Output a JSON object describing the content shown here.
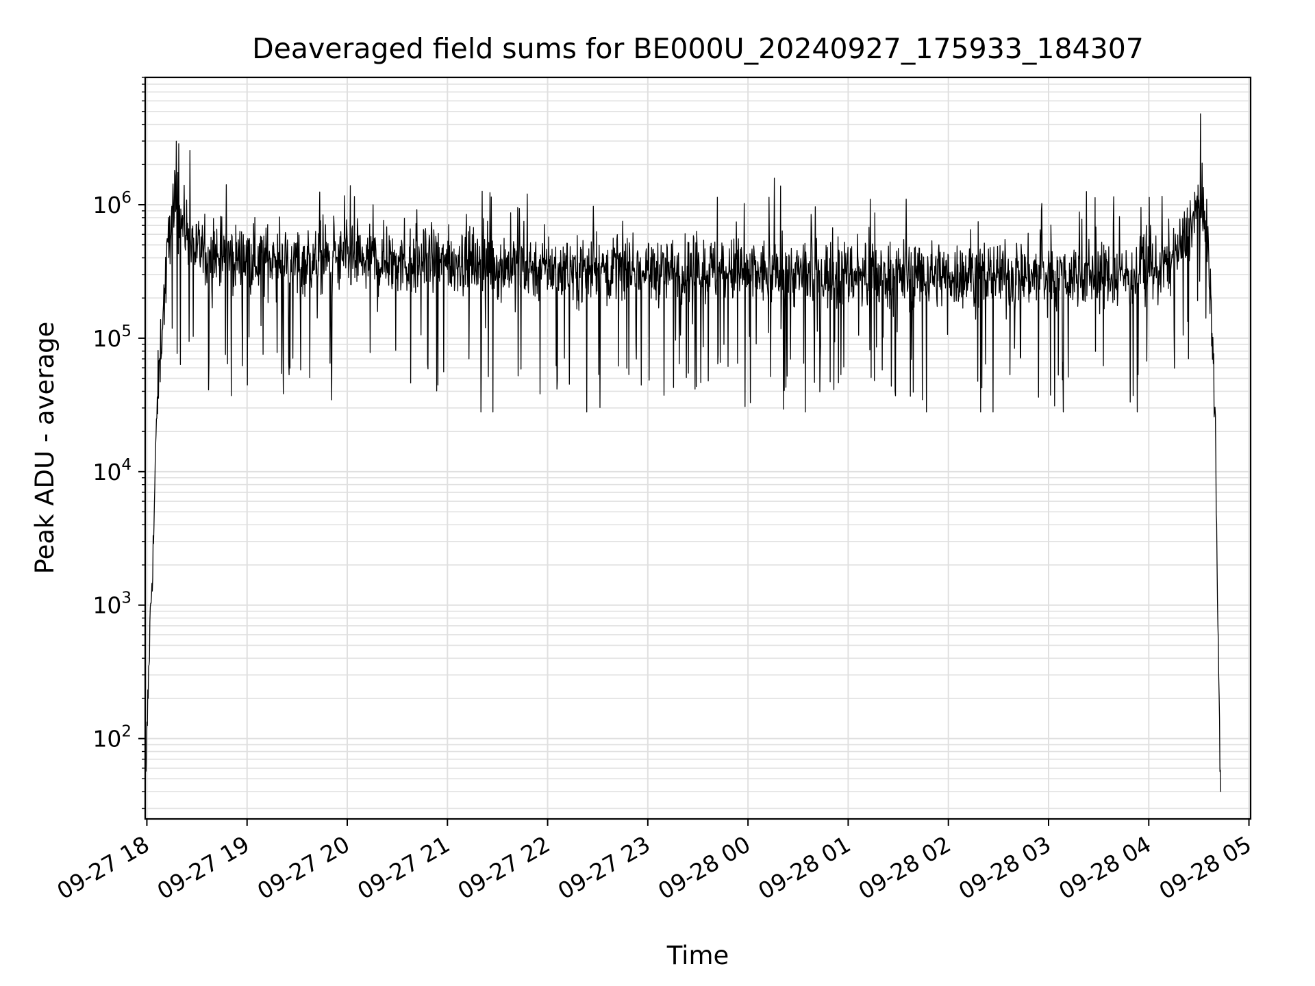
{
  "chart_data": {
    "type": "line",
    "title": "Deaveraged field sums for BE000U_20240927_175933_184307",
    "xlabel": "Time",
    "ylabel": "Peak ADU - average",
    "yscale": "log",
    "ylim": [
      25,
      9000000
    ],
    "xlim": [
      "2024-09-27 17:59",
      "2024-09-28 05:01"
    ],
    "grid": true,
    "line_color": "#000000",
    "grid_color": "#e0e0e0",
    "x_tick_labels": [
      "09-27 18",
      "09-27 19",
      "09-27 20",
      "09-27 21",
      "09-27 22",
      "09-27 23",
      "09-28 00",
      "09-28 01",
      "09-28 02",
      "09-28 03",
      "09-28 04",
      "09-28 05"
    ],
    "x_ticks": [
      "2024-09-27 18:00",
      "2024-09-27 19:00",
      "2024-09-27 20:00",
      "2024-09-27 21:00",
      "2024-09-27 22:00",
      "2024-09-27 23:00",
      "2024-09-28 00:00",
      "2024-09-28 01:00",
      "2024-09-28 02:00",
      "2024-09-28 03:00",
      "2024-09-28 04:00",
      "2024-09-28 05:00"
    ],
    "y_ticks": [
      {
        "value": 100,
        "base": "10",
        "exp": "2"
      },
      {
        "value": 1000,
        "base": "10",
        "exp": "3"
      },
      {
        "value": 10000,
        "base": "10",
        "exp": "4"
      },
      {
        "value": 100000,
        "base": "10",
        "exp": "5"
      },
      {
        "value": 1000000,
        "base": "10",
        "exp": "6"
      }
    ],
    "series": [
      {
        "style": "noisy band",
        "x": [
          "2024-09-27 17:59:33",
          "2024-09-27 18:00:00",
          "2024-09-27 18:02:00",
          "2024-09-27 18:04:00",
          "2024-09-27 18:06:00",
          "2024-09-27 18:09:00",
          "2024-09-27 18:12:00",
          "2024-09-27 18:15:00",
          "2024-09-27 18:20:00",
          "2024-09-27 18:30:00",
          "2024-09-27 18:45:00",
          "2024-09-27 19:00:00",
          "2024-09-27 19:30:00",
          "2024-09-27 20:00:00",
          "2024-09-27 20:30:00",
          "2024-09-27 21:00:00",
          "2024-09-27 21:30:00",
          "2024-09-27 22:00:00",
          "2024-09-27 22:30:00",
          "2024-09-27 23:00:00",
          "2024-09-27 23:30:00",
          "2024-09-28 00:00:00",
          "2024-09-28 00:30:00",
          "2024-09-28 01:00:00",
          "2024-09-28 01:30:00",
          "2024-09-28 02:00:00",
          "2024-09-28 02:30:00",
          "2024-09-28 03:00:00",
          "2024-09-28 03:30:00",
          "2024-09-28 03:50:00",
          "2024-09-28 04:00:00",
          "2024-09-28 04:08:00",
          "2024-09-28 04:14:00",
          "2024-09-28 04:20:00",
          "2024-09-28 04:25:00",
          "2024-09-28 04:28:00",
          "2024-09-28 04:30:00",
          "2024-09-28 04:32:00",
          "2024-09-28 04:34:00",
          "2024-09-28 04:36:00",
          "2024-09-28 04:38:00",
          "2024-09-28 04:40:00",
          "2024-09-28 04:41:00",
          "2024-09-28 04:43:07"
        ],
        "y": [
          45,
          100,
          800,
          3000,
          30000,
          120000,
          350000,
          1000000,
          800000,
          450000,
          400000,
          400000,
          380000,
          380000,
          370000,
          370000,
          350000,
          340000,
          330000,
          320000,
          320000,
          310000,
          300000,
          300000,
          300000,
          300000,
          300000,
          300000,
          300000,
          300000,
          320000,
          340000,
          380000,
          500000,
          700000,
          850000,
          1000000,
          900000,
          700000,
          400000,
          100000,
          20000,
          1500,
          30
        ],
        "noise_log10": 0.23,
        "spike_max": 4800000,
        "dip_min": 28000
      }
    ]
  }
}
